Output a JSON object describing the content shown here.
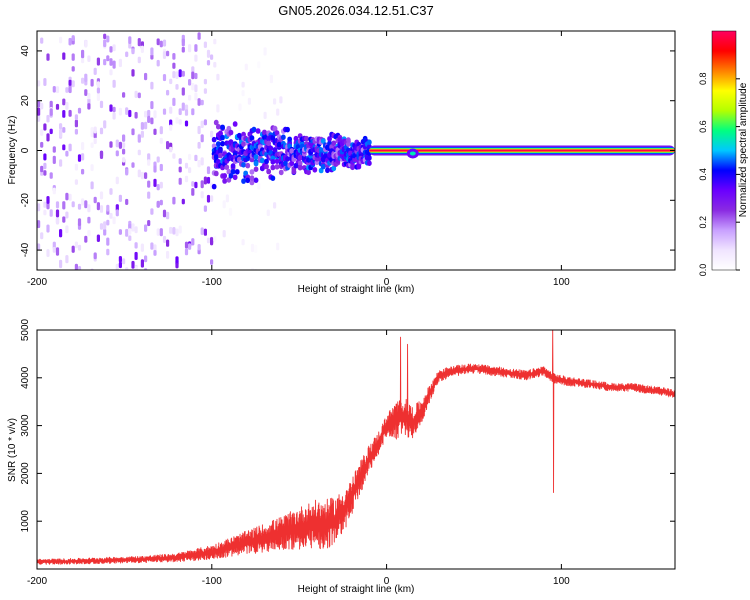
{
  "title": "GN05.2026.034.12.51.C37",
  "chart_data": [
    {
      "type": "heatmap",
      "title": "GN05.2026.034.12.51.C37",
      "xlabel": "Height of straight line (km)",
      "ylabel": "Frequency (Hz)",
      "xlim": [
        -200,
        165
      ],
      "ylim": [
        -48,
        48
      ],
      "x_ticks": [
        -200,
        -100,
        0,
        100
      ],
      "x_tick_labels": [
        "-200",
        "-100",
        "0",
        "100"
      ],
      "y_ticks": [
        -40,
        -20,
        0,
        20,
        40
      ],
      "y_tick_labels": [
        "-40",
        "-20",
        "0",
        "20",
        "40"
      ],
      "grid": false,
      "colorbar": {
        "label": "Normalized spectral amplitude",
        "range": [
          0,
          1
        ],
        "ticks": [
          0.0,
          0.2,
          0.4,
          0.6,
          0.8
        ],
        "tick_labels": [
          "0.0",
          "0.2",
          "0.4",
          "0.6",
          "0.8"
        ],
        "colors": [
          "#ffffff",
          "#f0e4ff",
          "#c8a0ff",
          "#8a2be2",
          "#6a00ff",
          "#0000ff",
          "#00c8ff",
          "#00ff80",
          "#b4ff00",
          "#ffff00",
          "#ff8000",
          "#ff0000",
          "#ff0060"
        ]
      },
      "features": {
        "noise_region": {
          "x_range": [
            -200,
            -100
          ],
          "freq_range": [
            -48,
            48
          ],
          "amplitude": 0.15
        },
        "sparse_noise_region": {
          "x_range": [
            -100,
            -60
          ],
          "freq_range": [
            -48,
            48
          ],
          "amplitude": 0.05
        },
        "signal_cluster": {
          "x_range": [
            -100,
            -10
          ],
          "freq_range": [
            -10,
            10
          ],
          "amplitude": 0.3
        },
        "tone_line": {
          "x_range": [
            -10,
            165
          ],
          "freq_center": 0,
          "amplitude": 1.0
        }
      }
    },
    {
      "type": "line",
      "xlabel": "Height of straight line (km)",
      "ylabel": "SNR (10 * v/v)",
      "xlim": [
        -200,
        165
      ],
      "ylim": [
        0,
        5000
      ],
      "x_ticks": [
        -200,
        -100,
        0,
        100
      ],
      "x_tick_labels": [
        "-200",
        "-100",
        "0",
        "100"
      ],
      "y_ticks": [
        1000,
        2000,
        3000,
        4000,
        5000
      ],
      "y_tick_labels": [
        "1000",
        "2000",
        "3000",
        "4000",
        "5000"
      ],
      "grid": false,
      "series": [
        {
          "name": "SNR",
          "color": "#ee3030",
          "x": [
            -200,
            -180,
            -160,
            -140,
            -120,
            -100,
            -90,
            -80,
            -70,
            -60,
            -50,
            -40,
            -35,
            -30,
            -25,
            -20,
            -15,
            -10,
            -5,
            0,
            5,
            10,
            15,
            20,
            25,
            30,
            40,
            50,
            60,
            70,
            80,
            90,
            95,
            100,
            110,
            120,
            130,
            140,
            150,
            160,
            165
          ],
          "values": [
            150,
            160,
            180,
            200,
            240,
            350,
            450,
            550,
            650,
            750,
            850,
            950,
            900,
            1000,
            1200,
            1500,
            1900,
            2300,
            2600,
            3000,
            3100,
            3200,
            3050,
            3300,
            3700,
            4050,
            4150,
            4200,
            4150,
            4100,
            4050,
            4150,
            4000,
            3950,
            3900,
            3850,
            3800,
            3800,
            3750,
            3700,
            3650
          ],
          "amplitude": [
            110,
            120,
            130,
            140,
            180,
            300,
            400,
            500,
            600,
            700,
            900,
            1000,
            1100,
            1000,
            900,
            800,
            700,
            600,
            500,
            450,
            800,
            800,
            700,
            500,
            350,
            250,
            220,
            200,
            200,
            200,
            200,
            200,
            200,
            200,
            180,
            170,
            170,
            170,
            170,
            170,
            170
          ],
          "spikes": [
            {
              "x": 8,
              "value": 4850
            },
            {
              "x": 12,
              "value": 4700
            },
            {
              "x": 95,
              "value": 5050
            },
            {
              "x": 95.5,
              "value": 1600
            }
          ]
        }
      ]
    }
  ]
}
